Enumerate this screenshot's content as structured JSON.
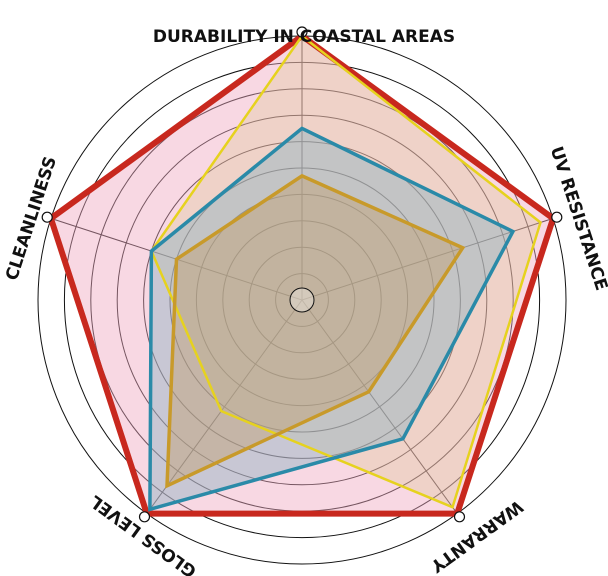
{
  "chart_data": {
    "type": "radar",
    "title": "",
    "axes": [
      "DURABILITY IN COASTAL AREAS",
      "UV RESISTANCE",
      "WARRANTY",
      "GLOSS LEVEL",
      "CLEANLINESS"
    ],
    "rmax": 10,
    "rings": 10,
    "grid": true,
    "series": [
      {
        "color": "#e8c6b8",
        "stroke": "#c8281e",
        "fill": "#f0a8c0",
        "fill_opacity": 0.45,
        "stroke_width": 6,
        "values": [
          10,
          10,
          10,
          10,
          10
        ]
      },
      {
        "color": "#ffd700",
        "stroke": "#e6d21e",
        "fill": "#d9c48a",
        "fill_opacity": 0.3,
        "stroke_width": 2.5,
        "values": [
          10,
          9.5,
          9.7,
          5.2,
          6
        ]
      },
      {
        "color": "#2a8aa8",
        "stroke": "#2a8aa8",
        "fill": "#8eb4c0",
        "fill_opacity": 0.45,
        "stroke_width": 3.5,
        "values": [
          6.5,
          8.4,
          6.5,
          9.8,
          6
        ]
      },
      {
        "color": "#c89a2a",
        "stroke": "#c89a2a",
        "fill": "#c2a070",
        "fill_opacity": 0.45,
        "stroke_width": 3.5,
        "values": [
          4.7,
          6.4,
          4.3,
          8.7,
          5
        ]
      }
    ]
  }
}
